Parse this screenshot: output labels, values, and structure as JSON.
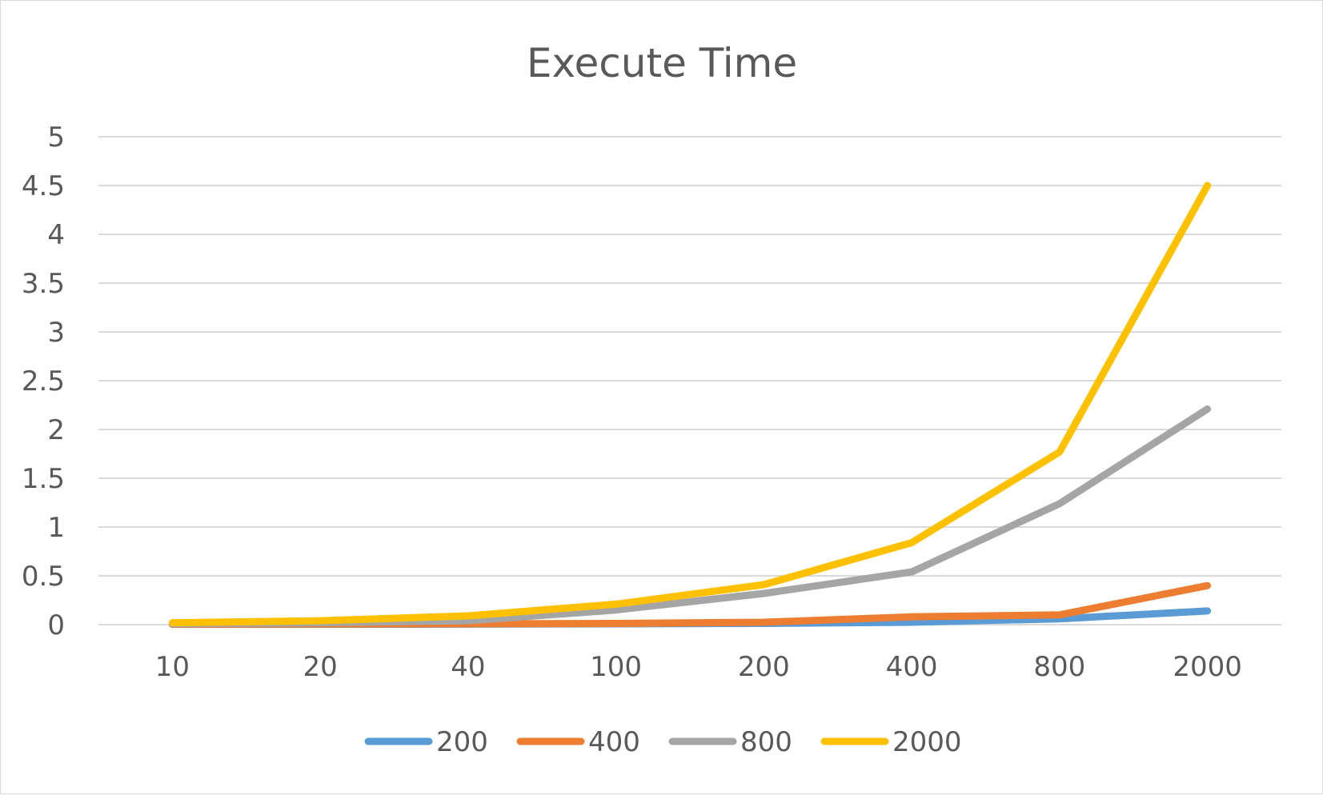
{
  "chart_data": {
    "type": "line",
    "title": "Execute Time",
    "xlabel": "",
    "ylabel": "",
    "categories": [
      "10",
      "20",
      "40",
      "100",
      "200",
      "400",
      "800",
      "2000"
    ],
    "yticks": [
      "0",
      "0.5",
      "1",
      "1.5",
      "2",
      "2.5",
      "3",
      "3.5",
      "4",
      "4.5",
      "5"
    ],
    "ylim": [
      0,
      5
    ],
    "grid": true,
    "legend_position": "bottom",
    "series": [
      {
        "name": "200",
        "color": "#5b9bd5",
        "values": [
          0.003,
          0.004,
          0.005,
          0.008,
          0.012,
          0.025,
          0.06,
          0.14
        ]
      },
      {
        "name": "400",
        "color": "#ed7d31",
        "values": [
          0.005,
          0.006,
          0.008,
          0.012,
          0.025,
          0.08,
          0.1,
          0.4
        ]
      },
      {
        "name": "800",
        "color": "#a5a5a5",
        "values": [
          0.01,
          0.02,
          0.04,
          0.15,
          0.32,
          0.54,
          1.24,
          2.21
        ]
      },
      {
        "name": "2000",
        "color": "#ffc000",
        "values": [
          0.02,
          0.04,
          0.09,
          0.21,
          0.41,
          0.84,
          1.77,
          4.5
        ]
      }
    ]
  }
}
